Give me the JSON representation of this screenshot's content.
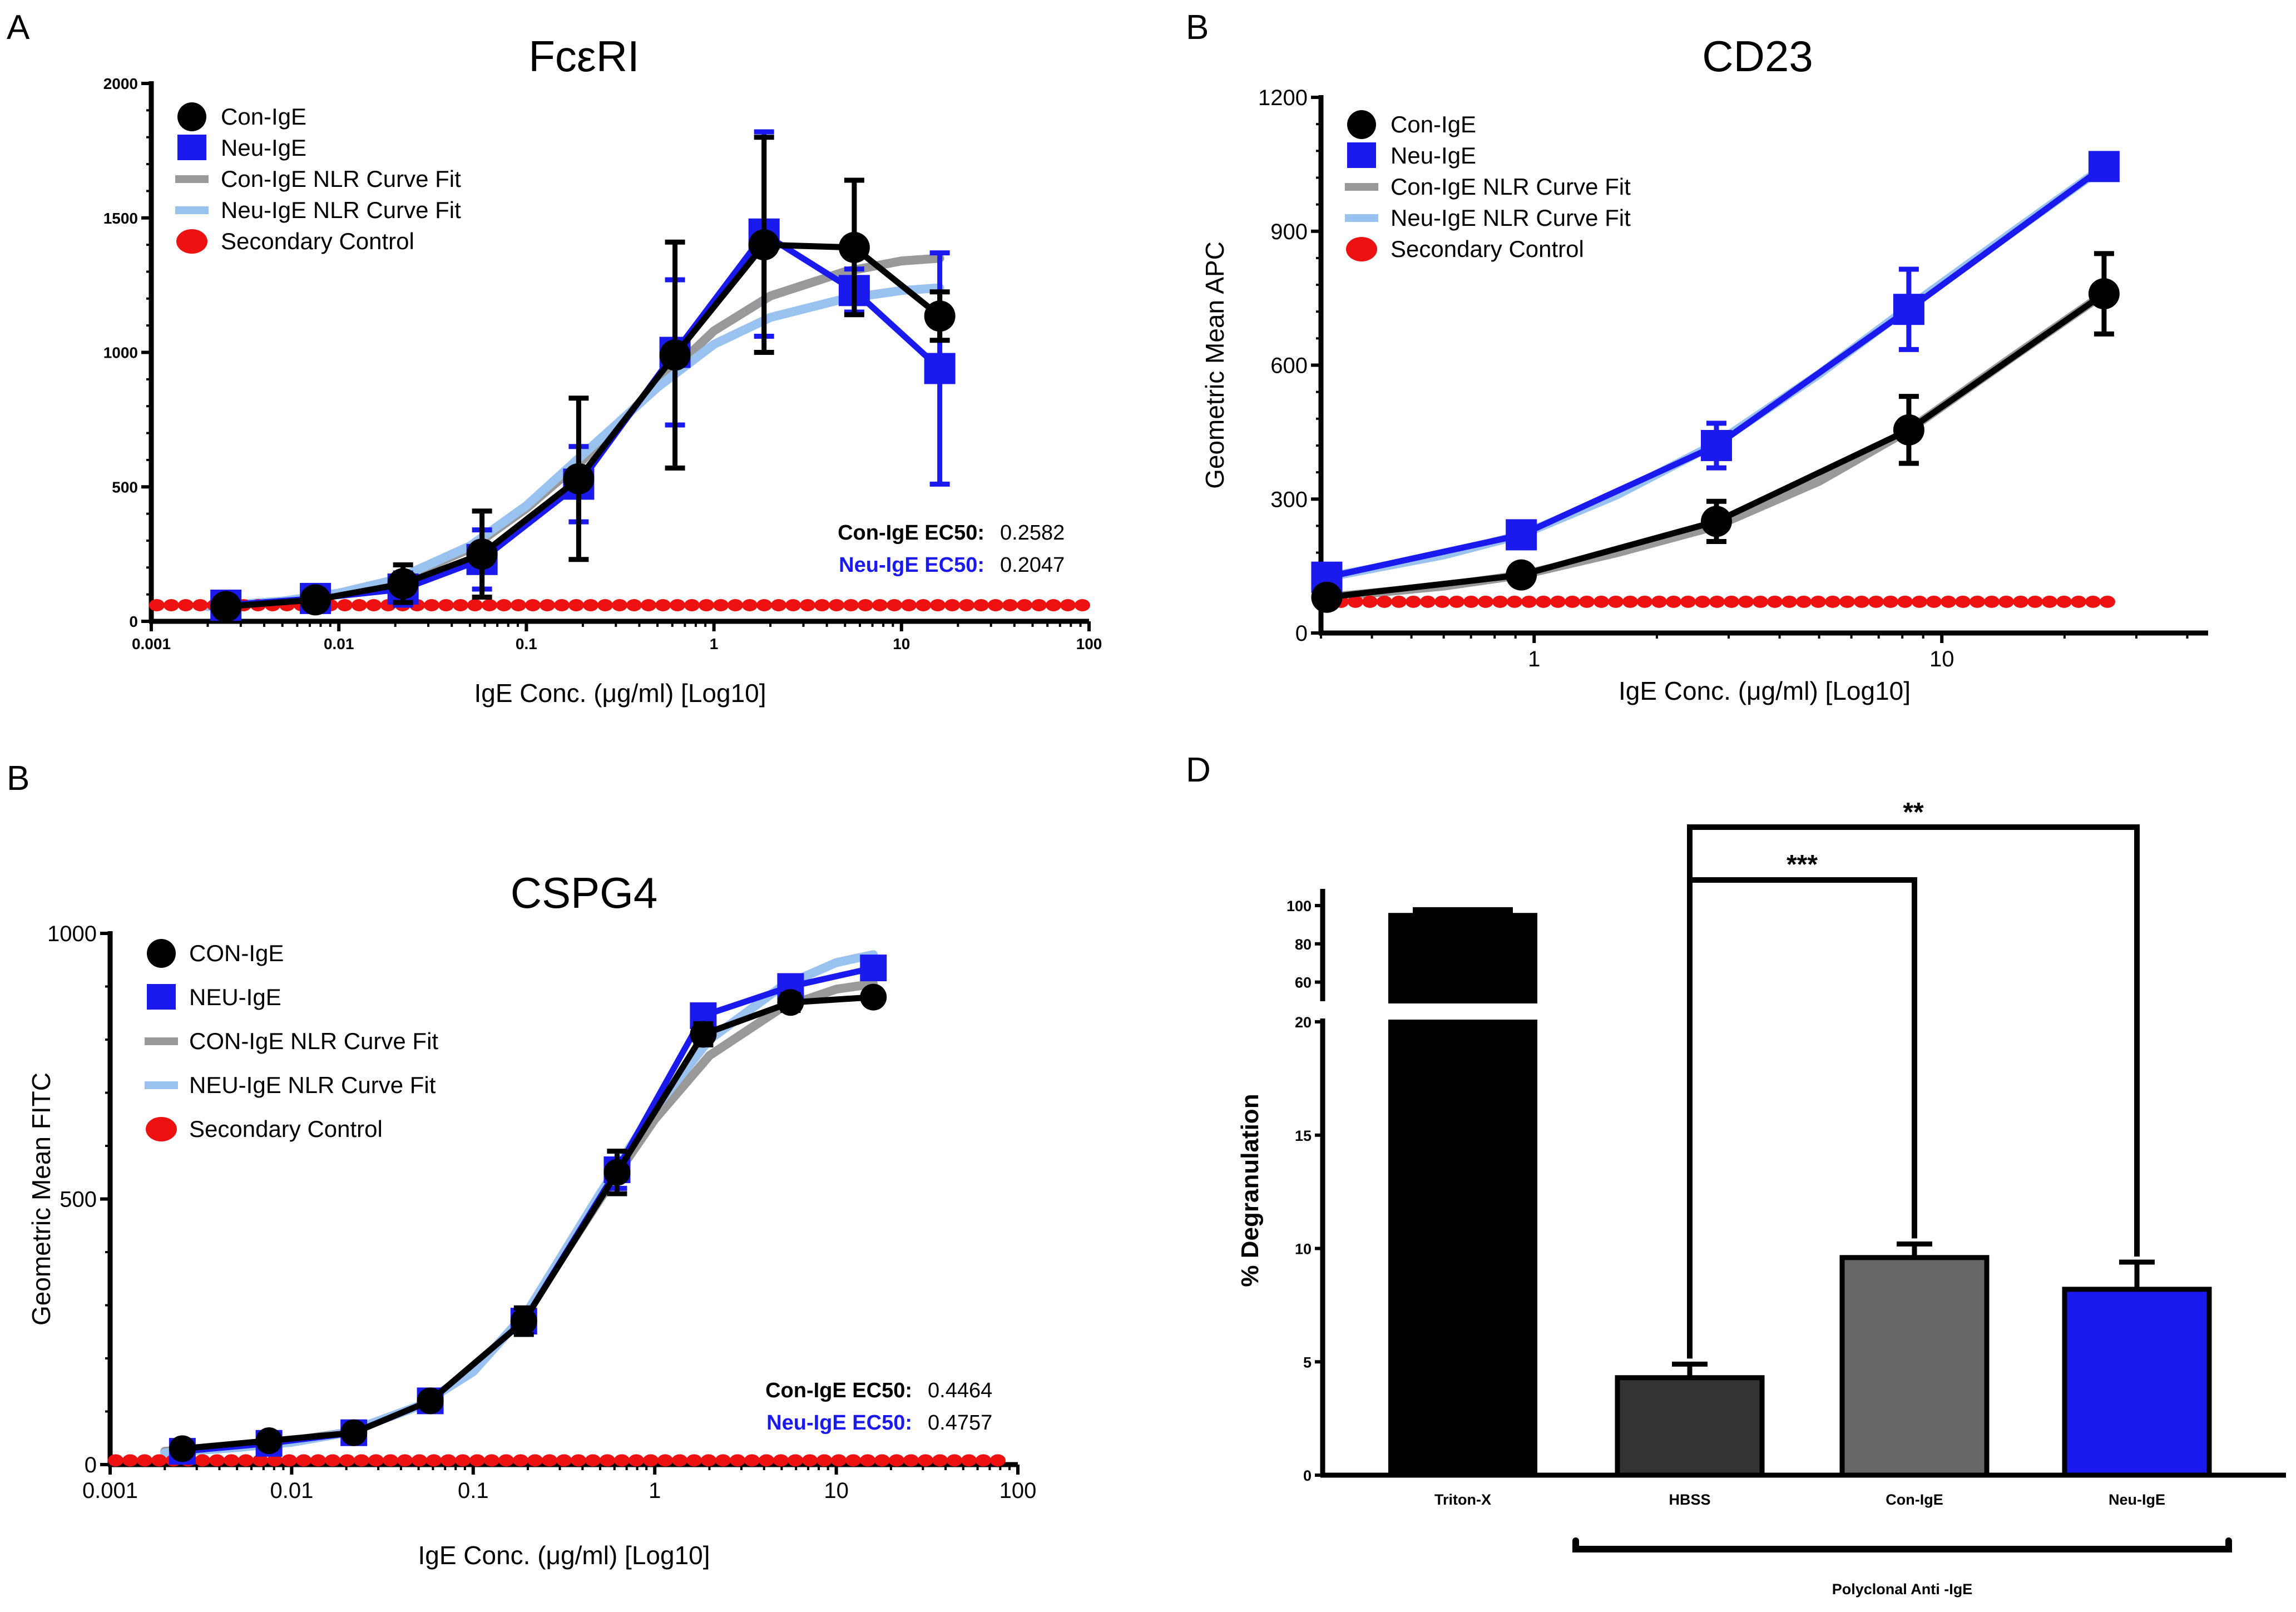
{
  "figure": {
    "panel_labels": [
      "A",
      "B",
      "B",
      "D"
    ]
  },
  "chart_data": [
    {
      "id": "A",
      "type": "line",
      "title": "FcεRI",
      "xlabel": "IgE Conc. (μg/ml) [Log10]",
      "ylabel": "",
      "xscale": "log",
      "xlim": [
        0.001,
        100
      ],
      "ylim": [
        0,
        2000
      ],
      "xticks": [
        0.001,
        0.01,
        0.1,
        1,
        10,
        100
      ],
      "xtick_labels": [
        "0.001",
        "0.01",
        "0.1",
        "1",
        "10",
        "100"
      ],
      "yticks": [
        0,
        500,
        1000,
        1500,
        2000
      ],
      "ytick_labels": [
        "0",
        "500",
        "1000",
        "1500",
        "2000"
      ],
      "legend_position": "top-left",
      "legend": [
        "Con-IgE",
        "Neu-IgE",
        "Con-IgE NLR Curve Fit",
        "Neu-IgE NLR Curve Fit",
        "Secondary  Control"
      ],
      "annotations": [
        {
          "label": "Con-IgE EC50:",
          "value": "0.2582",
          "color": "#000000"
        },
        {
          "label": "Neu-IgE EC50:",
          "value": "0.2047",
          "color": "#1a1aee"
        }
      ],
      "series": [
        {
          "name": "Con-IgE",
          "color": "#000000",
          "marker": "circle",
          "x": [
            0.0025,
            0.0075,
            0.022,
            0.058,
            0.19,
            0.62,
            1.85,
            5.6,
            16
          ],
          "y": [
            55,
            80,
            140,
            250,
            530,
            990,
            1400,
            1390,
            1135
          ],
          "err": [
            20,
            25,
            70,
            160,
            300,
            420,
            400,
            250,
            90
          ]
        },
        {
          "name": "Neu-IgE",
          "color": "#1a1aee",
          "marker": "square",
          "x": [
            0.0025,
            0.0075,
            0.022,
            0.058,
            0.19,
            0.62,
            1.85,
            5.6,
            16
          ],
          "y": [
            60,
            85,
            120,
            230,
            510,
            1000,
            1440,
            1230,
            940
          ],
          "err": [
            15,
            20,
            60,
            110,
            140,
            270,
            380,
            80,
            430
          ]
        },
        {
          "name": "Con-IgE NLR Curve Fit",
          "color": "#999999",
          "type": "fit",
          "x": [
            0.002,
            0.005,
            0.01,
            0.02,
            0.05,
            0.1,
            0.2,
            0.5,
            1,
            2,
            5,
            10,
            16
          ],
          "y": [
            55,
            75,
            100,
            150,
            270,
            420,
            600,
            880,
            1080,
            1210,
            1300,
            1340,
            1350
          ]
        },
        {
          "name": "Neu-IgE NLR Curve Fit",
          "color": "#99c2f0",
          "type": "fit",
          "x": [
            0.002,
            0.005,
            0.01,
            0.02,
            0.05,
            0.1,
            0.2,
            0.5,
            1,
            2,
            5,
            10,
            16
          ],
          "y": [
            55,
            75,
            105,
            155,
            280,
            430,
            620,
            870,
            1030,
            1130,
            1200,
            1230,
            1240
          ]
        },
        {
          "name": "Secondary  Control",
          "color": "#ee1111",
          "type": "dotted",
          "y": 60
        }
      ]
    },
    {
      "id": "B-top",
      "type": "line",
      "title": "CD23",
      "xlabel": "IgE Conc. (μg/ml) [Log10]",
      "ylabel": "Geometric Mean APC",
      "xscale": "log",
      "xlim": [
        0.3,
        45
      ],
      "ylim": [
        0,
        1200
      ],
      "xticks": [
        1,
        10
      ],
      "xtick_labels": [
        "1",
        "10"
      ],
      "yticks": [
        0,
        300,
        600,
        900,
        1200
      ],
      "ytick_labels": [
        "0",
        "300",
        "600",
        "900",
        "1200"
      ],
      "legend_position": "top-left",
      "legend": [
        "Con-IgE",
        "Neu-IgE",
        "Con-IgE NLR Curve Fit",
        "Neu-IgE NLR Curve Fit",
        "Secondary  Control"
      ],
      "series": [
        {
          "name": "Con-IgE",
          "color": "#000000",
          "marker": "circle",
          "x": [
            0.31,
            0.93,
            2.8,
            8.3,
            25
          ],
          "y": [
            80,
            130,
            250,
            455,
            760
          ],
          "err": [
            10,
            12,
            45,
            75,
            90
          ]
        },
        {
          "name": "Neu-IgE",
          "color": "#1a1aee",
          "marker": "square",
          "x": [
            0.31,
            0.93,
            2.8,
            8.3,
            25
          ],
          "y": [
            125,
            220,
            420,
            725,
            1045
          ],
          "err": [
            15,
            15,
            50,
            90,
            20
          ]
        },
        {
          "name": "Con-IgE NLR Curve Fit",
          "color": "#999999",
          "type": "fit",
          "x": [
            0.31,
            0.6,
            0.93,
            1.6,
            2.8,
            5,
            8.3,
            15,
            25
          ],
          "y": [
            80,
            105,
            130,
            180,
            240,
            340,
            455,
            620,
            760
          ]
        },
        {
          "name": "Neu-IgE NLR Curve Fit",
          "color": "#99c2f0",
          "type": "fit",
          "x": [
            0.31,
            0.6,
            0.93,
            1.6,
            2.8,
            5,
            8.3,
            15,
            25
          ],
          "y": [
            125,
            175,
            220,
            310,
            425,
            580,
            730,
            900,
            1045
          ]
        },
        {
          "name": "Secondary  Control",
          "color": "#ee1111",
          "type": "dotted",
          "y": 70
        }
      ]
    },
    {
      "id": "B-bottom",
      "type": "line",
      "title": "CSPG4",
      "xlabel": "IgE Conc. (μg/ml) [Log10]",
      "ylabel": "Geometric Mean FITC",
      "xscale": "log",
      "xlim": [
        0.001,
        100
      ],
      "ylim": [
        0,
        1000
      ],
      "xticks": [
        0.001,
        0.01,
        0.1,
        1,
        10,
        100
      ],
      "xtick_labels": [
        "0.001",
        "0.01",
        "0.1",
        "1",
        "10",
        "100"
      ],
      "yticks": [
        0,
        500,
        1000
      ],
      "ytick_labels": [
        "0",
        "500",
        "1000"
      ],
      "legend_position": "top-left",
      "legend": [
        "CON-IgE",
        "NEU-IgE",
        "CON-IgE NLR Curve Fit",
        "NEU-IgE NLR Curve Fit",
        "Secondary  Control"
      ],
      "annotations": [
        {
          "label": "Con-IgE EC50:",
          "value": "0.4464",
          "color": "#000000"
        },
        {
          "label": "Neu-IgE EC50:",
          "value": "0.4757",
          "color": "#1a1aee"
        }
      ],
      "series": [
        {
          "name": "CON-IgE",
          "color": "#000000",
          "marker": "circle",
          "x": [
            0.0025,
            0.0075,
            0.022,
            0.058,
            0.19,
            0.62,
            1.85,
            5.6,
            16
          ],
          "y": [
            30,
            45,
            60,
            120,
            270,
            550,
            810,
            870,
            880
          ],
          "err": [
            5,
            6,
            8,
            12,
            25,
            40,
            20,
            15,
            8
          ]
        },
        {
          "name": "NEU-IgE",
          "color": "#1a1aee",
          "marker": "square",
          "x": [
            0.0025,
            0.0075,
            0.022,
            0.058,
            0.19,
            0.62,
            1.85,
            5.6,
            16
          ],
          "y": [
            25,
            40,
            60,
            120,
            270,
            555,
            845,
            900,
            935
          ],
          "err": [
            5,
            6,
            8,
            12,
            20,
            35,
            15,
            15,
            10
          ]
        },
        {
          "name": "CON-IgE NLR Curve Fit",
          "color": "#999999",
          "type": "fit",
          "x": [
            0.002,
            0.005,
            0.01,
            0.02,
            0.05,
            0.1,
            0.2,
            0.5,
            1,
            2,
            5,
            10,
            16
          ],
          "y": [
            25,
            35,
            45,
            60,
            110,
            175,
            290,
            500,
            650,
            770,
            860,
            895,
            905
          ]
        },
        {
          "name": "NEU-IgE NLR Curve Fit",
          "color": "#99c2f0",
          "type": "fit",
          "x": [
            0.002,
            0.005,
            0.01,
            0.02,
            0.05,
            0.1,
            0.2,
            0.5,
            1,
            2,
            5,
            10,
            16
          ],
          "y": [
            22,
            32,
            42,
            60,
            110,
            175,
            290,
            510,
            670,
            800,
            900,
            945,
            960
          ]
        },
        {
          "name": "Secondary  Control",
          "color": "#ee1111",
          "type": "dotted",
          "y": 8
        }
      ]
    },
    {
      "id": "D",
      "type": "bar",
      "title": "",
      "xlabel": "",
      "ylabel": "% Degranulation",
      "categories": [
        "Triton-X",
        "HBSS",
        "Con-IgE",
        "Neu-IgE"
      ],
      "values": [
        95,
        4.3,
        9.6,
        8.2
      ],
      "errors": [
        3,
        0.6,
        0.6,
        1.2
      ],
      "colors": [
        "#000000",
        "#333333",
        "#666666",
        "#1a1aee"
      ],
      "y_axis_broken": true,
      "ylim_lower": [
        0,
        20
      ],
      "ylim_upper": [
        50,
        100
      ],
      "yticks_lower": [
        0,
        5,
        10,
        15,
        20
      ],
      "ytick_labels_lower": [
        "0",
        "5",
        "10",
        "15",
        "20"
      ],
      "yticks_upper": [
        60,
        80,
        100
      ],
      "ytick_labels_upper": [
        "60",
        "80",
        "100"
      ],
      "significance": [
        {
          "from": "HBSS",
          "to": "Con-IgE",
          "label": "***"
        },
        {
          "from": "HBSS",
          "to": "Neu-IgE",
          "label": "**"
        }
      ],
      "group_bracket_label": "Polyclonal Anti  -IgE"
    }
  ]
}
